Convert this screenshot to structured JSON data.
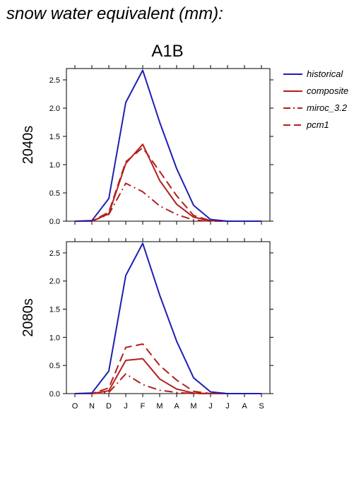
{
  "page": {
    "title": "snow water equivalent (mm):"
  },
  "figure": {
    "scenario": "A1B"
  },
  "chart_data": [
    {
      "type": "line",
      "panel_label": "2040s",
      "categories": [
        "O",
        "N",
        "D",
        "J",
        "F",
        "M",
        "A",
        "M",
        "J",
        "J",
        "A",
        "S"
      ],
      "ylim": [
        0,
        2.7
      ],
      "yticks": [
        0.0,
        0.5,
        1.0,
        1.5,
        2.0,
        2.5
      ],
      "ytick_labels": [
        "0.0",
        "0.5",
        "1.0",
        "1.5",
        "2.0",
        "2.5"
      ],
      "show_xtick_labels": false,
      "series": [
        {
          "name": "historical",
          "color": "#1f1fb4",
          "dash": "solid",
          "values": [
            0.0,
            0.01,
            0.4,
            2.1,
            2.67,
            1.75,
            0.93,
            0.28,
            0.03,
            0.0,
            0.0,
            0.0
          ]
        },
        {
          "name": "composite",
          "color": "#b41f1f",
          "dash": "solid",
          "values": [
            0.0,
            0.0,
            0.13,
            1.02,
            1.36,
            0.72,
            0.3,
            0.07,
            0.01,
            0.0,
            0.0,
            0.0
          ]
        },
        {
          "name": "miroc_3.2",
          "color": "#b41f1f",
          "dash": "dashdot",
          "values": [
            0.0,
            0.0,
            0.12,
            0.67,
            0.52,
            0.27,
            0.12,
            0.02,
            0.0,
            0.0,
            0.0,
            0.0
          ]
        },
        {
          "name": "pcm1",
          "color": "#b41f1f",
          "dash": "dashed",
          "values": [
            0.0,
            0.0,
            0.16,
            1.05,
            1.3,
            0.88,
            0.45,
            0.1,
            0.01,
            0.0,
            0.0,
            0.0
          ]
        }
      ]
    },
    {
      "type": "line",
      "panel_label": "2080s",
      "categories": [
        "O",
        "N",
        "D",
        "J",
        "F",
        "M",
        "A",
        "M",
        "J",
        "J",
        "A",
        "S"
      ],
      "ylim": [
        0,
        2.7
      ],
      "yticks": [
        0.0,
        0.5,
        1.0,
        1.5,
        2.0,
        2.5
      ],
      "ytick_labels": [
        "0.0",
        "0.5",
        "1.0",
        "1.5",
        "2.0",
        "2.5"
      ],
      "show_xtick_labels": true,
      "series": [
        {
          "name": "historical",
          "color": "#1f1fb4",
          "dash": "solid",
          "values": [
            0.0,
            0.01,
            0.4,
            2.1,
            2.67,
            1.75,
            0.93,
            0.28,
            0.03,
            0.0,
            0.0,
            0.0
          ]
        },
        {
          "name": "composite",
          "color": "#b41f1f",
          "dash": "solid",
          "values": [
            0.0,
            0.0,
            0.05,
            0.59,
            0.62,
            0.26,
            0.08,
            0.01,
            0.0,
            0.0,
            0.0,
            0.0
          ]
        },
        {
          "name": "miroc_3.2",
          "color": "#b41f1f",
          "dash": "dashdot",
          "values": [
            0.0,
            0.0,
            0.02,
            0.35,
            0.16,
            0.06,
            0.02,
            0.0,
            0.0,
            0.0,
            0.0,
            0.0
          ]
        },
        {
          "name": "pcm1",
          "color": "#b41f1f",
          "dash": "dashed",
          "values": [
            0.0,
            0.0,
            0.1,
            0.82,
            0.88,
            0.5,
            0.24,
            0.04,
            0.0,
            0.0,
            0.0,
            0.0
          ]
        }
      ]
    }
  ],
  "legend": {
    "placement": "right",
    "entries": [
      {
        "label": "historical",
        "color": "#1f1fb4",
        "dash": "solid"
      },
      {
        "label": "composite",
        "color": "#b41f1f",
        "dash": "solid"
      },
      {
        "label": "miroc_3.2",
        "color": "#b41f1f",
        "dash": "dashdot"
      },
      {
        "label": "pcm1",
        "color": "#b41f1f",
        "dash": "dashed"
      }
    ]
  }
}
